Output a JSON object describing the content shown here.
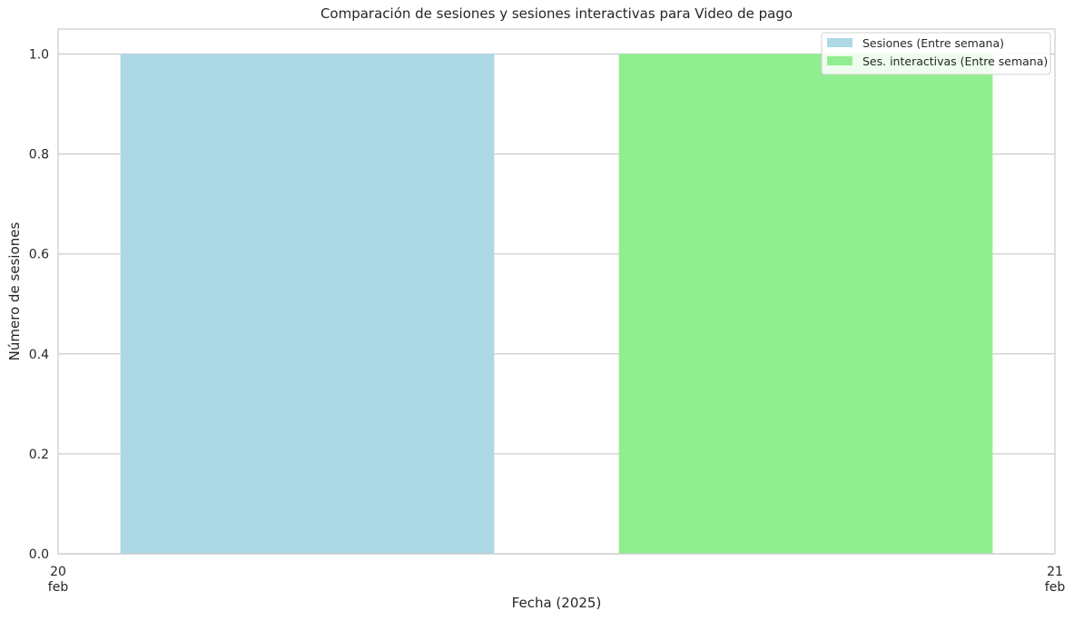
{
  "chart_data": {
    "type": "bar",
    "title": "Comparación de sesiones y sesiones interactivas para Video de pago",
    "xlabel": "Fecha (2025)",
    "ylabel": "Número de sesiones",
    "x_ticks": [
      {
        "line1": "20",
        "line2": "feb"
      },
      {
        "line1": "21",
        "line2": "feb"
      }
    ],
    "ylim": [
      0,
      1.05
    ],
    "y_ticks": [
      "0.0",
      "0.2",
      "0.4",
      "0.6",
      "0.8",
      "1.0"
    ],
    "grid": true,
    "legend_position": "top-right",
    "series": [
      {
        "name": "Sesiones (Entre semana)",
        "color": "#add8e6",
        "values": [
          1
        ]
      },
      {
        "name": "Ses. interactivas (Entre semana)",
        "color": "#90ee90",
        "values": [
          1
        ]
      }
    ]
  }
}
